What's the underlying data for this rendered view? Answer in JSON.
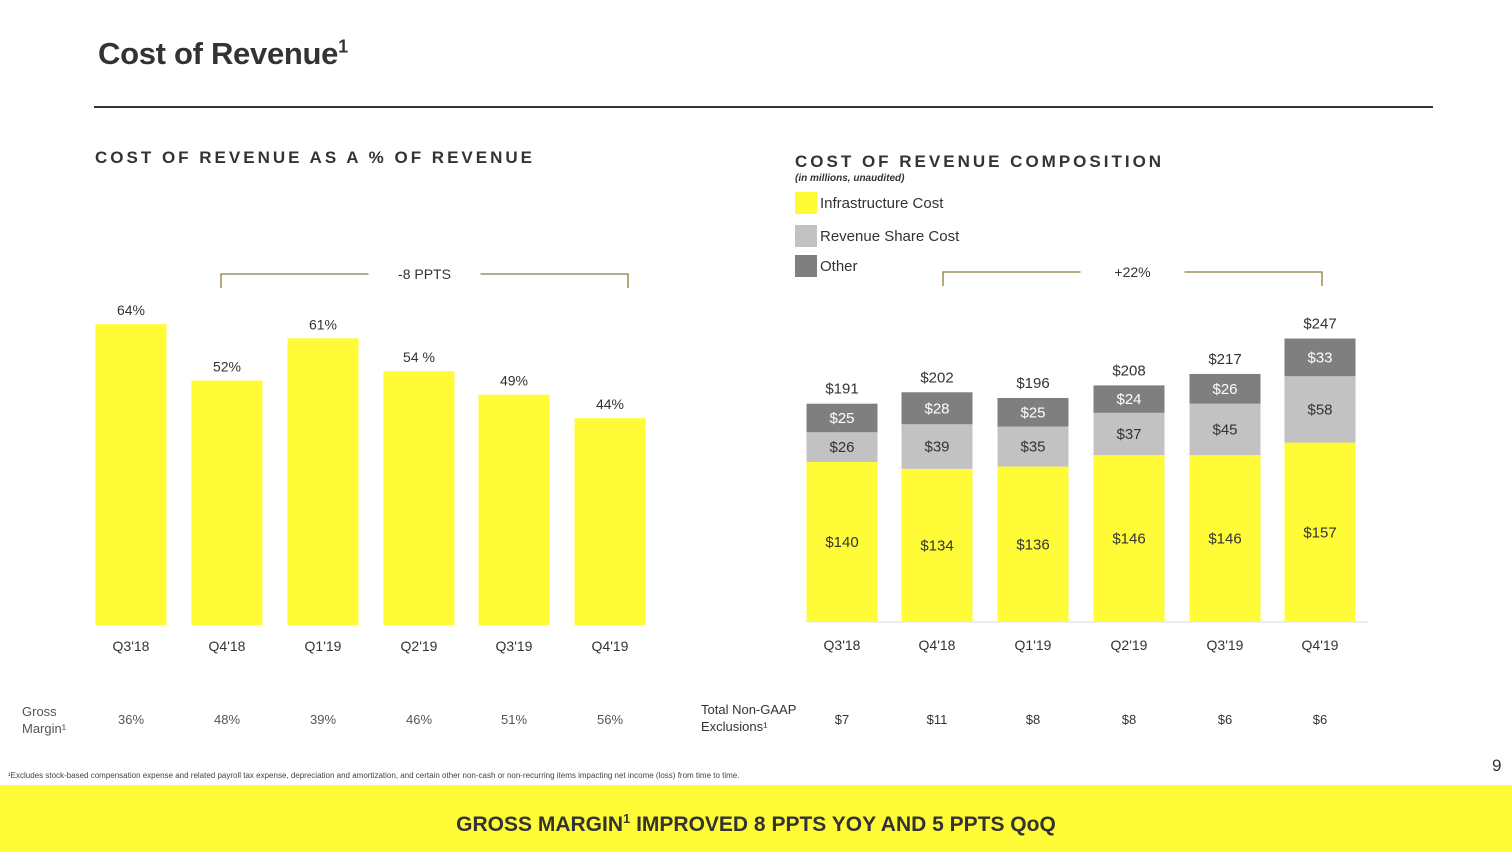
{
  "title": {
    "text": "Cost of Revenue",
    "sup": "1"
  },
  "left_section_title": "COST OF REVENUE AS A % OF REVENUE",
  "right_section_title": "COST OF REVENUE COMPOSITION",
  "right_section_subtitle": "(in millions, unaudited)",
  "legend": [
    "Infrastructure Cost",
    "Revenue Share Cost",
    "Other"
  ],
  "colors": {
    "infrastructure": "#fffc37",
    "revenue_share": "#c2c2c2",
    "other": "#7f7f7f",
    "bracket": "#8a7d3d"
  },
  "row_labels": {
    "gross_margin": [
      "Gross",
      "Margin¹"
    ],
    "non_gaap": [
      "Total Non-GAAP",
      "Exclusions¹"
    ]
  },
  "footnote": "¹Excludes stock-based compensation expense and related payroll tax expense, depreciation and amortization, and certain other non-cash or non-recurring items impacting net income (loss) from time to time.",
  "page_number": "9",
  "banner": {
    "pre": "GROSS MARGIN",
    "sup": "1",
    "post": " IMPROVED 8 PPTS YOY AND 5 PPTS QoQ"
  },
  "chart_data": [
    {
      "type": "bar",
      "title": "COST OF REVENUE AS A % OF REVENUE",
      "categories": [
        "Q3'18",
        "Q4'18",
        "Q1'19",
        "Q2'19",
        "Q3'19",
        "Q4'19"
      ],
      "values": [
        64,
        52,
        61,
        54,
        49,
        44
      ],
      "data_labels": [
        "64%",
        "52%",
        "61%",
        "54 %",
        "49%",
        "44%"
      ],
      "unit": "%",
      "annotation": {
        "text": "-8 PPTS",
        "from": "Q4'18",
        "to": "Q4'19"
      },
      "gross_margin": [
        "36%",
        "48%",
        "39%",
        "46%",
        "51%",
        "56%"
      ]
    },
    {
      "type": "bar",
      "stacked": true,
      "title": "COST OF REVENUE COMPOSITION",
      "subtitle": "(in millions, unaudited)",
      "categories": [
        "Q3'18",
        "Q4'18",
        "Q1'19",
        "Q2'19",
        "Q3'19",
        "Q4'19"
      ],
      "series": [
        {
          "name": "Infrastructure Cost",
          "values": [
            140,
            134,
            136,
            146,
            146,
            157
          ],
          "labels": [
            "$140",
            "$134",
            "$136",
            "$146",
            "$146",
            "$157"
          ]
        },
        {
          "name": "Revenue Share Cost",
          "values": [
            26,
            39,
            35,
            37,
            45,
            58
          ],
          "labels": [
            "$26",
            "$39",
            "$35",
            "$37",
            "$45",
            "$58"
          ]
        },
        {
          "name": "Other",
          "values": [
            25,
            28,
            25,
            24,
            26,
            33
          ],
          "labels": [
            "$25",
            "$28",
            "$25",
            "$24",
            "$26",
            "$33"
          ]
        }
      ],
      "totals": [
        191,
        202,
        196,
        208,
        217,
        247
      ],
      "total_labels": [
        "$191",
        "$202",
        "$196",
        "$208",
        "$217",
        "$247"
      ],
      "annotation": {
        "text": "+22%",
        "from": "Q4'18",
        "to": "Q4'19"
      },
      "non_gaap_exclusions": [
        "$7",
        "$11",
        "$8",
        "$8",
        "$6",
        "$6"
      ]
    }
  ]
}
